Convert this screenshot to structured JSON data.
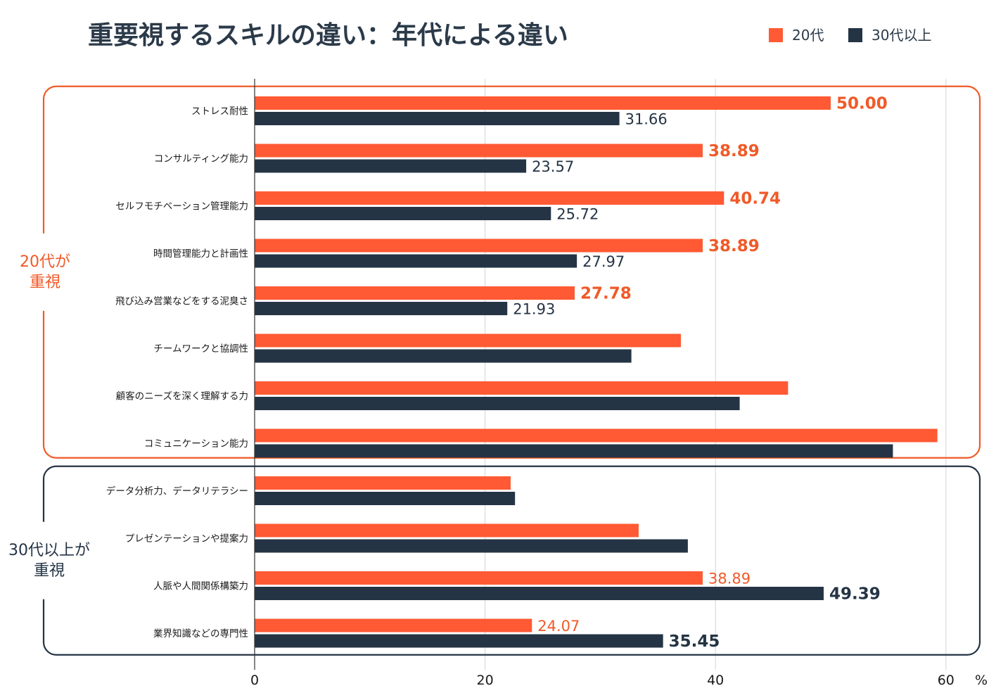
{
  "chart_data": {
    "type": "bar",
    "orientation": "horizontal",
    "title": "重要視するスキルの違い：年代による違い",
    "unit": "%",
    "xlim": [
      0,
      60
    ],
    "xticks": [
      "0",
      "20",
      "40",
      "60"
    ],
    "grid": true,
    "legend_position": "top-right",
    "colors": {
      "young": "#ff5a33",
      "older": "#253445",
      "grid": "#d4d4d4"
    },
    "categories": [
      "ストレス耐性",
      "コンサルティング能力",
      "セルフモチベーション管理能力",
      "時間管理能力と計画性",
      "飛び込み営業などをする泥臭さ",
      "チームワークと協調性",
      "顧客のニーズを深く理解する力",
      "コミュニケーション能力",
      "データ分析力、データリテラシー",
      "プレゼンテーションや提案力",
      "人脈や人間関係構築力",
      "業界知識などの専門性"
    ],
    "series": [
      {
        "name": "20代",
        "values": [
          50.0,
          38.89,
          40.74,
          38.89,
          27.78,
          37.0,
          46.3,
          59.26,
          22.22,
          33.33,
          38.89,
          24.07
        ]
      },
      {
        "name": "30代以上",
        "values": [
          31.66,
          23.57,
          25.72,
          27.97,
          21.93,
          32.7,
          42.1,
          55.4,
          22.6,
          37.6,
          49.39,
          35.45
        ]
      }
    ],
    "data_labels": [
      {
        "category_index": 0,
        "series": 0,
        "text": "50.00",
        "emphasis": true
      },
      {
        "category_index": 0,
        "series": 1,
        "text": "31.66",
        "emphasis": false
      },
      {
        "category_index": 1,
        "series": 0,
        "text": "38.89",
        "emphasis": true
      },
      {
        "category_index": 1,
        "series": 1,
        "text": "23.57",
        "emphasis": false
      },
      {
        "category_index": 2,
        "series": 0,
        "text": "40.74",
        "emphasis": true
      },
      {
        "category_index": 2,
        "series": 1,
        "text": "25.72",
        "emphasis": false
      },
      {
        "category_index": 3,
        "series": 0,
        "text": "38.89",
        "emphasis": true
      },
      {
        "category_index": 3,
        "series": 1,
        "text": "27.97",
        "emphasis": false
      },
      {
        "category_index": 4,
        "series": 0,
        "text": "27.78",
        "emphasis": true
      },
      {
        "category_index": 4,
        "series": 1,
        "text": "21.93",
        "emphasis": false
      },
      {
        "category_index": 10,
        "series": 0,
        "text": "38.89",
        "emphasis": false
      },
      {
        "category_index": 10,
        "series": 1,
        "text": "49.39",
        "emphasis": true
      },
      {
        "category_index": 11,
        "series": 0,
        "text": "24.07",
        "emphasis": false
      },
      {
        "category_index": 11,
        "series": 1,
        "text": "35.45",
        "emphasis": true
      }
    ],
    "groups": [
      {
        "label_lines": [
          "20代が",
          "重視"
        ],
        "start_index": 0,
        "end_index": 7,
        "color": "#f05a28"
      },
      {
        "label_lines": [
          "30代以上が",
          "重視"
        ],
        "start_index": 8,
        "end_index": 11,
        "color": "#253445"
      }
    ]
  }
}
